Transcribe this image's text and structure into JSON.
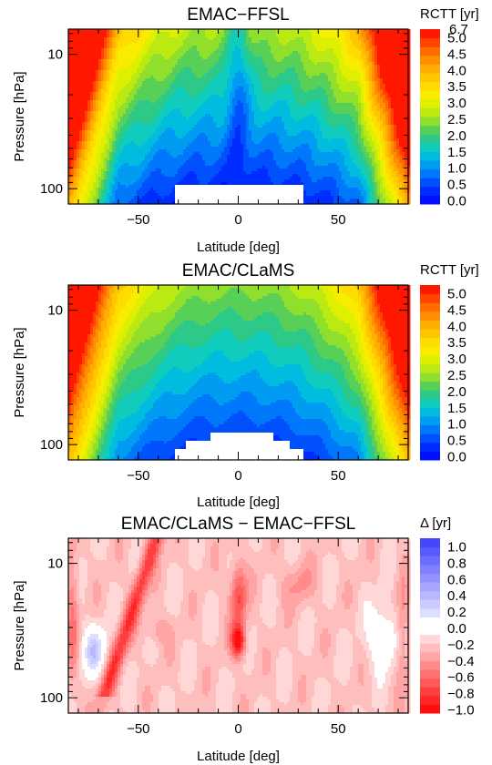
{
  "chart_data": [
    {
      "type": "heatmap",
      "title": "EMAC−FFSL",
      "xlabel": "Latitude [deg]",
      "ylabel": "Pressure [hPa]",
      "xlim": [
        -85,
        85
      ],
      "ylim": [
        130,
        6.5
      ],
      "yscale": "log",
      "x_ticks": [
        -50,
        0,
        50
      ],
      "x_tick_labels": [
        "−50",
        "0",
        "50"
      ],
      "y_ticks": [
        10,
        100
      ],
      "y_tick_labels": [
        "10",
        "100"
      ],
      "colorbar": {
        "title": "RCTT [yr]",
        "levels": [
          0.0,
          0.5,
          1.0,
          1.5,
          2.0,
          2.5,
          3.0,
          3.5,
          4.0,
          4.5,
          5.0
        ],
        "labels": [
          "0.0",
          "0.5",
          "1.0",
          "1.5",
          "2.0",
          "2.5",
          "3.0",
          "3.5",
          "4.0",
          "4.5",
          "5.0"
        ],
        "top_label": "6.7"
      }
    },
    {
      "type": "heatmap",
      "title": "EMAC/CLaMS",
      "xlabel": "Latitude [deg]",
      "ylabel": "Pressure [hPa]",
      "xlim": [
        -85,
        85
      ],
      "ylim": [
        130,
        6.5
      ],
      "yscale": "log",
      "x_ticks": [
        -50,
        0,
        50
      ],
      "x_tick_labels": [
        "−50",
        "0",
        "50"
      ],
      "y_ticks": [
        10,
        100
      ],
      "y_tick_labels": [
        "10",
        "100"
      ],
      "colorbar": {
        "title": "RCTT [yr]",
        "levels": [
          0.0,
          0.5,
          1.0,
          1.5,
          2.0,
          2.5,
          3.0,
          3.5,
          4.0,
          4.5,
          5.0
        ],
        "labels": [
          "0.0",
          "0.5",
          "1.0",
          "1.5",
          "2.0",
          "2.5",
          "3.0",
          "3.5",
          "4.0",
          "4.5",
          "5.0"
        ]
      }
    },
    {
      "type": "heatmap",
      "title": "EMAC/CLaMS − EMAC−FFSL",
      "xlabel": "Latitude [deg]",
      "ylabel": "Pressure [hPa]",
      "xlim": [
        -85,
        85
      ],
      "ylim": [
        130,
        6.5
      ],
      "yscale": "log",
      "x_ticks": [
        -50,
        0,
        50
      ],
      "x_tick_labels": [
        "−50",
        "0",
        "50"
      ],
      "y_ticks": [
        10,
        100
      ],
      "y_tick_labels": [
        "10",
        "100"
      ],
      "colorbar": {
        "title": "Δ [yr]",
        "levels": [
          -1.0,
          -0.8,
          -0.6,
          -0.4,
          -0.2,
          0.0,
          0.2,
          0.4,
          0.6,
          0.8,
          1.0
        ],
        "labels": [
          "−1.0",
          "−0.8",
          "−0.6",
          "−0.4",
          "−0.2",
          "0.0",
          "0.2",
          "0.4",
          "0.6",
          "0.8",
          "1.0"
        ]
      }
    }
  ]
}
